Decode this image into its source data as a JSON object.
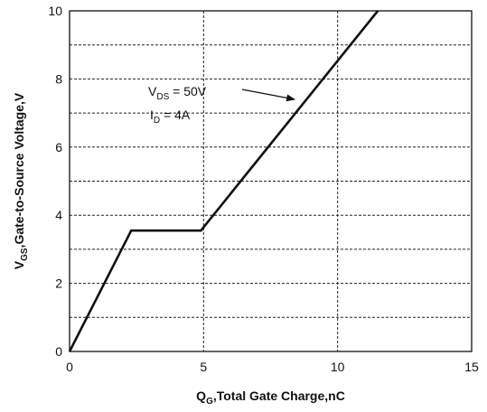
{
  "chart_data": {
    "type": "line",
    "xlabel": {
      "main": "Q",
      "sub": "G",
      "rest": ",Total Gate Charge,nC"
    },
    "ylabel": {
      "main": "V",
      "sub": "GS",
      "rest": ",Gate-to-Source Voltage,V"
    },
    "xlim": [
      0,
      15
    ],
    "ylim": [
      0,
      10
    ],
    "xticks": [
      0,
      5,
      10,
      15
    ],
    "yticks": [
      0,
      2,
      4,
      6,
      8,
      10
    ],
    "grid": true,
    "series": [
      {
        "x": [
          0,
          2.3,
          4.9,
          11.5
        ],
        "y": [
          0,
          3.55,
          3.55,
          10
        ]
      }
    ],
    "annotations": [
      {
        "main": "V",
        "sub": "DS",
        "rest": " = 50V"
      },
      {
        "main": "I",
        "sub": "D",
        "rest": " = 4A"
      }
    ],
    "arrow": {
      "points_to": {
        "x": 8.6,
        "y": 7.4
      }
    }
  }
}
